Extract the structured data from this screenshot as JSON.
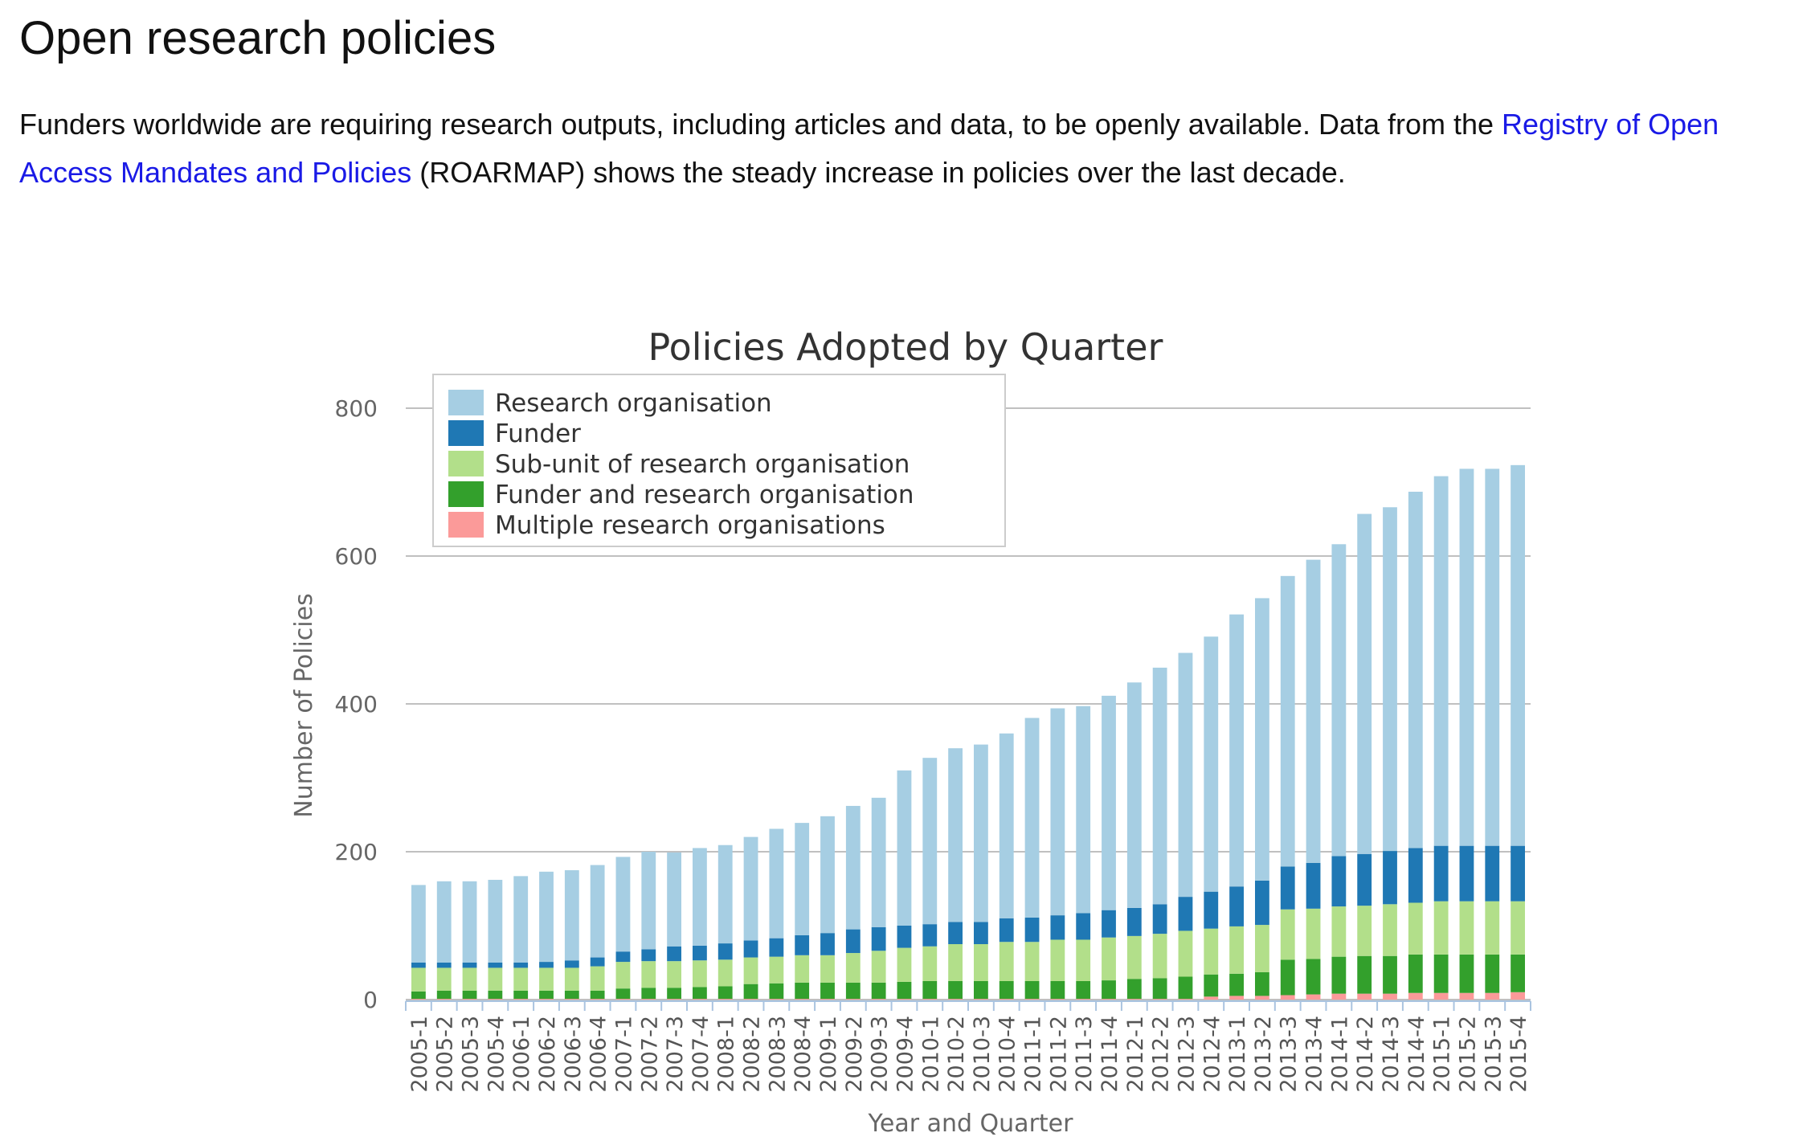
{
  "page": {
    "title": "Open research policies",
    "intro_before": "Funders worldwide are requiring research outputs, including articles and data, to be openly available. Data from the ",
    "link_text": "Registry of Open Access Mandates and Policies",
    "intro_after": " (ROARMAP) shows the steady increase in policies over the last decade."
  },
  "chart_data": {
    "type": "bar",
    "stacked": true,
    "title": "Policies Adopted by Quarter",
    "xlabel": "Year and Quarter",
    "ylabel": "Number of Policies",
    "ylim": [
      0,
      800
    ],
    "yticks": [
      0,
      200,
      400,
      600,
      800
    ],
    "grid": true,
    "legend_position": "top-left",
    "categories": [
      "2005-1",
      "2005-2",
      "2005-3",
      "2005-4",
      "2006-1",
      "2006-2",
      "2006-3",
      "2006-4",
      "2007-1",
      "2007-2",
      "2007-3",
      "2007-4",
      "2008-1",
      "2008-2",
      "2008-3",
      "2008-4",
      "2009-1",
      "2009-2",
      "2009-3",
      "2009-4",
      "2010-1",
      "2010-2",
      "2010-3",
      "2010-4",
      "2011-1",
      "2011-2",
      "2011-3",
      "2011-4",
      "2012-1",
      "2012-2",
      "2012-3",
      "2012-4",
      "2013-1",
      "2013-2",
      "2013-3",
      "2013-4",
      "2014-1",
      "2014-2",
      "2014-3",
      "2014-4",
      "2015-1",
      "2015-2",
      "2015-3",
      "2015-4"
    ],
    "series": [
      {
        "name": "Multiple research organisations",
        "color": "#fb9a99",
        "values": [
          1,
          1,
          1,
          1,
          1,
          1,
          1,
          1,
          1,
          1,
          1,
          1,
          1,
          1,
          1,
          1,
          1,
          1,
          1,
          1,
          1,
          1,
          1,
          1,
          1,
          1,
          1,
          1,
          1,
          1,
          1,
          4,
          5,
          5,
          6,
          7,
          8,
          8,
          8,
          9,
          9,
          9,
          9,
          10
        ]
      },
      {
        "name": "Funder and research organisation",
        "color": "#33a02c",
        "values": [
          10,
          11,
          11,
          11,
          11,
          11,
          11,
          11,
          14,
          15,
          15,
          16,
          17,
          20,
          21,
          22,
          22,
          22,
          22,
          23,
          24,
          24,
          24,
          24,
          24,
          24,
          24,
          25,
          27,
          28,
          30,
          30,
          30,
          32,
          48,
          48,
          50,
          51,
          51,
          52,
          52,
          52,
          52,
          51
        ]
      },
      {
        "name": "Sub-unit of research organisation",
        "color": "#b2df8a",
        "values": [
          32,
          31,
          31,
          31,
          31,
          31,
          31,
          33,
          36,
          36,
          36,
          36,
          36,
          36,
          36,
          37,
          37,
          40,
          43,
          46,
          47,
          50,
          50,
          53,
          53,
          56,
          56,
          58,
          58,
          60,
          62,
          62,
          64,
          64,
          68,
          68,
          68,
          68,
          70,
          70,
          72,
          72,
          72,
          72
        ]
      },
      {
        "name": "Funder",
        "color": "#1f78b4",
        "values": [
          7,
          7,
          7,
          7,
          7,
          8,
          10,
          12,
          14,
          16,
          20,
          20,
          22,
          23,
          25,
          27,
          30,
          32,
          32,
          30,
          30,
          30,
          30,
          32,
          33,
          33,
          36,
          37,
          38,
          40,
          46,
          50,
          54,
          60,
          58,
          62,
          68,
          70,
          72,
          74,
          75,
          75,
          75,
          75
        ]
      },
      {
        "name": "Research organisation",
        "color": "#a6cee3",
        "values": [
          105,
          110,
          110,
          112,
          117,
          122,
          122,
          125,
          128,
          132,
          127,
          132,
          133,
          140,
          148,
          152,
          158,
          167,
          175,
          210,
          225,
          235,
          240,
          250,
          270,
          280,
          280,
          290,
          305,
          320,
          330,
          345,
          368,
          382,
          393,
          410,
          422,
          460,
          465,
          482,
          500,
          510,
          510,
          515
        ]
      }
    ]
  }
}
